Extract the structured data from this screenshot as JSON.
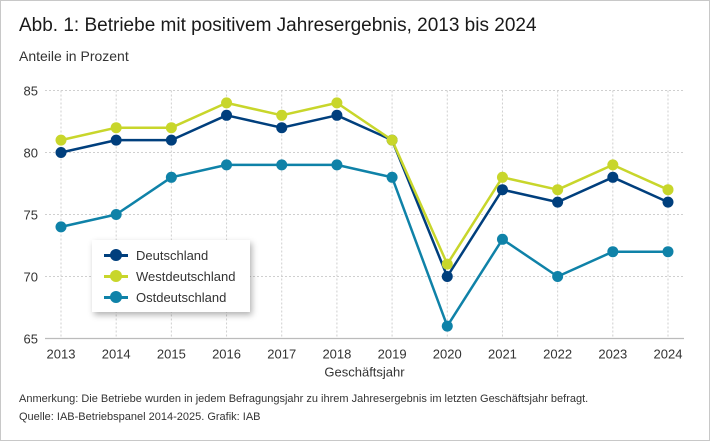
{
  "title": "Abb. 1: Betriebe mit positivem Jahresergebnis, 2013 bis 2024",
  "subtitle": "Anteile in Prozent",
  "note": "Anmerkung: Die Betriebe wurden in jedem Befragungsjahr zu ihrem Jahresergebnis im letzten Geschäftsjahr befragt.",
  "source": "Quelle: IAB-Betriebspanel 2014-2025. Grafik: IAB",
  "chart_data": {
    "type": "line",
    "title": "Abb. 1: Betriebe mit positivem Jahresergebnis, 2013 bis 2024",
    "xlabel": "Geschäftsjahr",
    "ylabel": "",
    "x": [
      "2013",
      "2014",
      "2015",
      "2016",
      "2017",
      "2018",
      "2019",
      "2020",
      "2021",
      "2022",
      "2023",
      "2024"
    ],
    "ylim": [
      65,
      85
    ],
    "yticks": [
      65,
      70,
      75,
      80,
      85
    ],
    "grid": true,
    "legend_position": "bottom-left inside",
    "series": [
      {
        "name": "Deutschland",
        "color": "#003f7d",
        "values": [
          80,
          81,
          81,
          83,
          82,
          83,
          81,
          70,
          77,
          76,
          78,
          76
        ]
      },
      {
        "name": "Westdeutschland",
        "color": "#c8d62b",
        "values": [
          81,
          82,
          82,
          84,
          83,
          84,
          81,
          71,
          78,
          77,
          79,
          77
        ]
      },
      {
        "name": "Ostdeutschland",
        "color": "#0f82a8",
        "values": [
          74,
          75,
          78,
          79,
          79,
          79,
          78,
          66,
          73,
          70,
          72,
          72
        ]
      }
    ]
  }
}
